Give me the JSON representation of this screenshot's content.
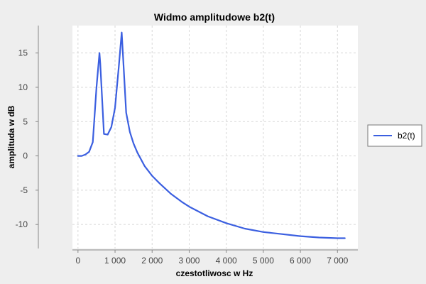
{
  "chart_data": {
    "type": "line",
    "title": "Widmo amplitudowe b2(t)",
    "xlabel": "czestotliwosc w Hz",
    "ylabel": "amplituda w dB",
    "xlim": [
      -150,
      7550
    ],
    "ylim": [
      -13.5,
      19
    ],
    "xticks": [
      0,
      1000,
      2000,
      3000,
      4000,
      5000,
      6000,
      7000
    ],
    "xtick_labels": [
      "0",
      "1 000",
      "2 000",
      "3 000",
      "4 000",
      "5 000",
      "6 000",
      "7 000"
    ],
    "yticks": [
      -10,
      -5,
      0,
      5,
      10,
      15
    ],
    "ytick_labels": [
      "-10",
      "-5",
      "0",
      "5",
      "10",
      "15"
    ],
    "grid": true,
    "legend_position": "right",
    "background_color": "#eeeeee",
    "plot_background_color": "#ffffff",
    "grid_color": "#d8d8d8",
    "series": [
      {
        "name": "b2(t)",
        "color": "#3b5fe0",
        "x": [
          0,
          100,
          200,
          300,
          400,
          500,
          580,
          600,
          700,
          800,
          900,
          1000,
          1100,
          1180,
          1200,
          1300,
          1400,
          1500,
          1600,
          1800,
          2000,
          2200,
          2500,
          2800,
          3000,
          3500,
          4000,
          4500,
          5000,
          5500,
          6000,
          6500,
          7000,
          7200
        ],
        "y": [
          0,
          0,
          0.2,
          0.6,
          2,
          10,
          15,
          13.5,
          3.2,
          3.1,
          4.2,
          7,
          13,
          18,
          16,
          6.3,
          3.5,
          1.8,
          0.5,
          -1.5,
          -2.9,
          -4,
          -5.5,
          -6.7,
          -7.4,
          -8.8,
          -9.8,
          -10.6,
          -11.1,
          -11.4,
          -11.7,
          -11.9,
          -12,
          -12
        ]
      }
    ]
  }
}
